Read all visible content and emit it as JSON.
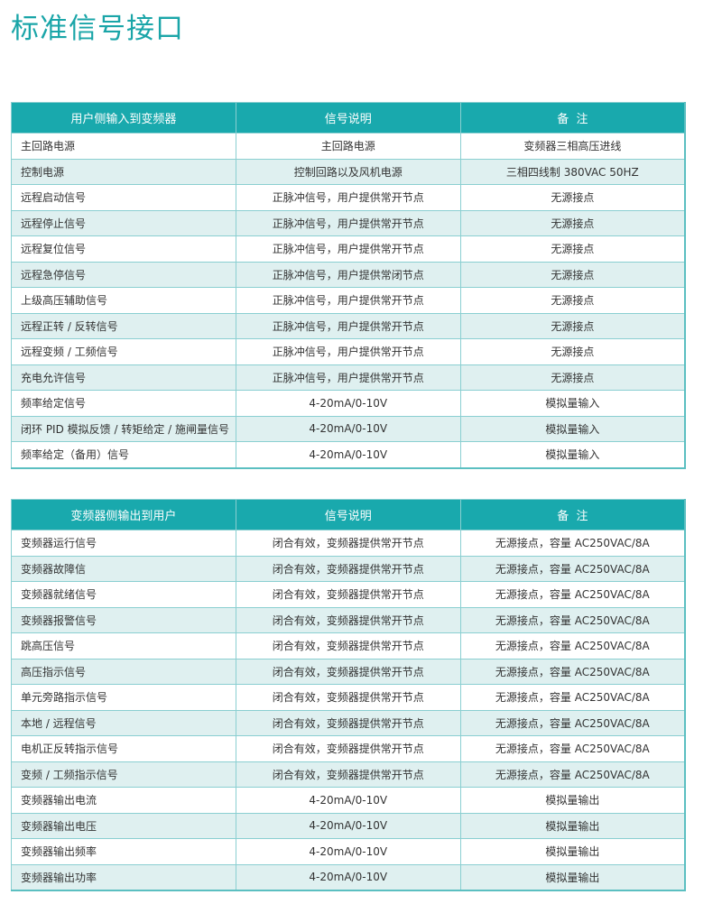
{
  "title": "标准信号接口",
  "tables": [
    {
      "header": [
        "用户侧输入到变频器",
        "信号说明",
        "备  注"
      ],
      "rows": [
        [
          "主回路电源",
          "主回路电源",
          "变频器三相高压进线"
        ],
        [
          "控制电源",
          "控制回路以及风机电源",
          "三相四线制 380VAC 50HZ"
        ],
        [
          "远程启动信号",
          "正脉冲信号，用户提供常开节点",
          "无源接点"
        ],
        [
          "远程停止信号",
          "正脉冲信号，用户提供常开节点",
          "无源接点"
        ],
        [
          "远程复位信号",
          "正脉冲信号，用户提供常开节点",
          "无源接点"
        ],
        [
          "远程急停信号",
          "正脉冲信号，用户提供常闭节点",
          "无源接点"
        ],
        [
          "上级高压辅助信号",
          "正脉冲信号，用户提供常开节点",
          "无源接点"
        ],
        [
          "远程正转 / 反转信号",
          "正脉冲信号，用户提供常开节点",
          "无源接点"
        ],
        [
          "远程变频 / 工频信号",
          "正脉冲信号，用户提供常开节点",
          "无源接点"
        ],
        [
          "充电允许信号",
          "正脉冲信号，用户提供常开节点",
          "无源接点"
        ],
        [
          "频率给定信号",
          "4-20mA/0-10V",
          "模拟量输入"
        ],
        [
          "闭环 PID 模拟反馈 / 转矩给定 / 施闸量信号",
          "4-20mA/0-10V",
          "模拟量输入"
        ],
        [
          "频率给定（备用）信号",
          "4-20mA/0-10V",
          "模拟量输入"
        ]
      ]
    },
    {
      "header": [
        "变频器侧输出到用户",
        "信号说明",
        "备  注"
      ],
      "rows": [
        [
          "变频器运行信号",
          "闭合有效，变频器提供常开节点",
          "无源接点，容量 AC250VAC/8A"
        ],
        [
          "变频器故障信",
          "闭合有效，变频器提供常开节点",
          "无源接点，容量 AC250VAC/8A"
        ],
        [
          "变频器就绪信号",
          "闭合有效，变频器提供常开节点",
          "无源接点，容量 AC250VAC/8A"
        ],
        [
          "变频器报警信号",
          "闭合有效，变频器提供常开节点",
          "无源接点，容量 AC250VAC/8A"
        ],
        [
          "跳高压信号",
          "闭合有效，变频器提供常开节点",
          "无源接点，容量 AC250VAC/8A"
        ],
        [
          "高压指示信号",
          "闭合有效，变频器提供常开节点",
          "无源接点，容量 AC250VAC/8A"
        ],
        [
          "单元旁路指示信号",
          "闭合有效，变频器提供常开节点",
          "无源接点，容量 AC250VAC/8A"
        ],
        [
          "本地 / 远程信号",
          "闭合有效，变频器提供常开节点",
          "无源接点，容量 AC250VAC/8A"
        ],
        [
          "电机正反转指示信号",
          "闭合有效，变频器提供常开节点",
          "无源接点，容量 AC250VAC/8A"
        ],
        [
          "变频 / 工频指示信号",
          "闭合有效，变频器提供常开节点",
          "无源接点，容量 AC250VAC/8A"
        ],
        [
          "变频器输出电流",
          "4-20mA/0-10V",
          "模拟量输出"
        ],
        [
          "变频器输出电压",
          "4-20mA/0-10V",
          "模拟量输出"
        ],
        [
          "变频器输出频率",
          "4-20mA/0-10V",
          "模拟量输出"
        ],
        [
          "变频器输出功率",
          "4-20mA/0-10V",
          "模拟量输出"
        ]
      ]
    }
  ]
}
